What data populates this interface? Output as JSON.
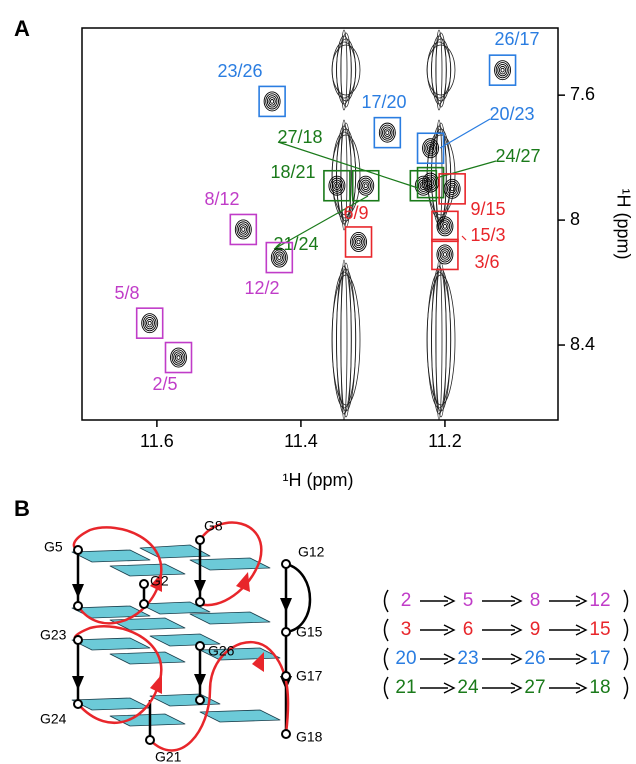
{
  "panel_a": {
    "label": "A",
    "xlabel": "¹H (ppm)",
    "ylabel": "¹H (ppm)",
    "xlim": [
      11.704,
      11.043
    ],
    "ylim": [
      7.385,
      8.64
    ],
    "xticks": [
      11.6,
      11.4,
      11.2
    ],
    "yticks": [
      7.6,
      8.0,
      8.4
    ],
    "peaks": [
      {
        "label": "23/26",
        "x": 11.44,
        "y": 7.62,
        "color": "#2a7de1"
      },
      {
        "label": "26/17",
        "x": 11.12,
        "y": 7.52,
        "color": "#2a7de1"
      },
      {
        "label": "17/20",
        "x": 11.28,
        "y": 7.72,
        "color": "#2a7de1"
      },
      {
        "label": "20/23",
        "x": 11.22,
        "y": 7.77,
        "color": "#2a7de1"
      },
      {
        "label": "27/18",
        "x": 11.23,
        "y": 7.89,
        "color": "#1a7a1a"
      },
      {
        "label": "18/21",
        "x": 11.35,
        "y": 7.89,
        "color": "#1a7a1a"
      },
      {
        "label": "24/27",
        "x": 11.22,
        "y": 7.88,
        "color": "#1a7a1a"
      },
      {
        "label": "21/24",
        "x": 11.31,
        "y": 7.89,
        "color": "#1a7a1a"
      },
      {
        "label": "6/9",
        "x": 11.32,
        "y": 8.07,
        "color": "#e8262b"
      },
      {
        "label": "9/15",
        "x": 11.19,
        "y": 7.9,
        "color": "#e8262b"
      },
      {
        "label": "15/3",
        "x": 11.2,
        "y": 8.02,
        "color": "#e8262b"
      },
      {
        "label": "3/6",
        "x": 11.2,
        "y": 8.11,
        "color": "#e8262b"
      },
      {
        "label": "8/12",
        "x": 11.48,
        "y": 8.03,
        "color": "#c03cc8"
      },
      {
        "label": "12/2",
        "x": 11.43,
        "y": 8.12,
        "color": "#c03cc8"
      },
      {
        "label": "5/8",
        "x": 11.61,
        "y": 8.33,
        "color": "#c03cc8"
      },
      {
        "label": "2/5",
        "x": 11.57,
        "y": 8.44,
        "color": "#c03cc8"
      }
    ]
  },
  "panel_b": {
    "label": "B",
    "residues": [
      "G5",
      "G8",
      "G2",
      "G12",
      "G15",
      "G23",
      "G26",
      "G17",
      "G24",
      "G21",
      "G18"
    ],
    "sequences": [
      {
        "color": "#c03cc8",
        "items": [
          "2",
          "5",
          "8",
          "12"
        ]
      },
      {
        "color": "#e8262b",
        "items": [
          "3",
          "6",
          "9",
          "15"
        ]
      },
      {
        "color": "#2a7de1",
        "items": [
          "20",
          "23",
          "26",
          "17"
        ]
      },
      {
        "color": "#1a7a1a",
        "items": [
          "21",
          "24",
          "27",
          "18"
        ]
      }
    ]
  }
}
